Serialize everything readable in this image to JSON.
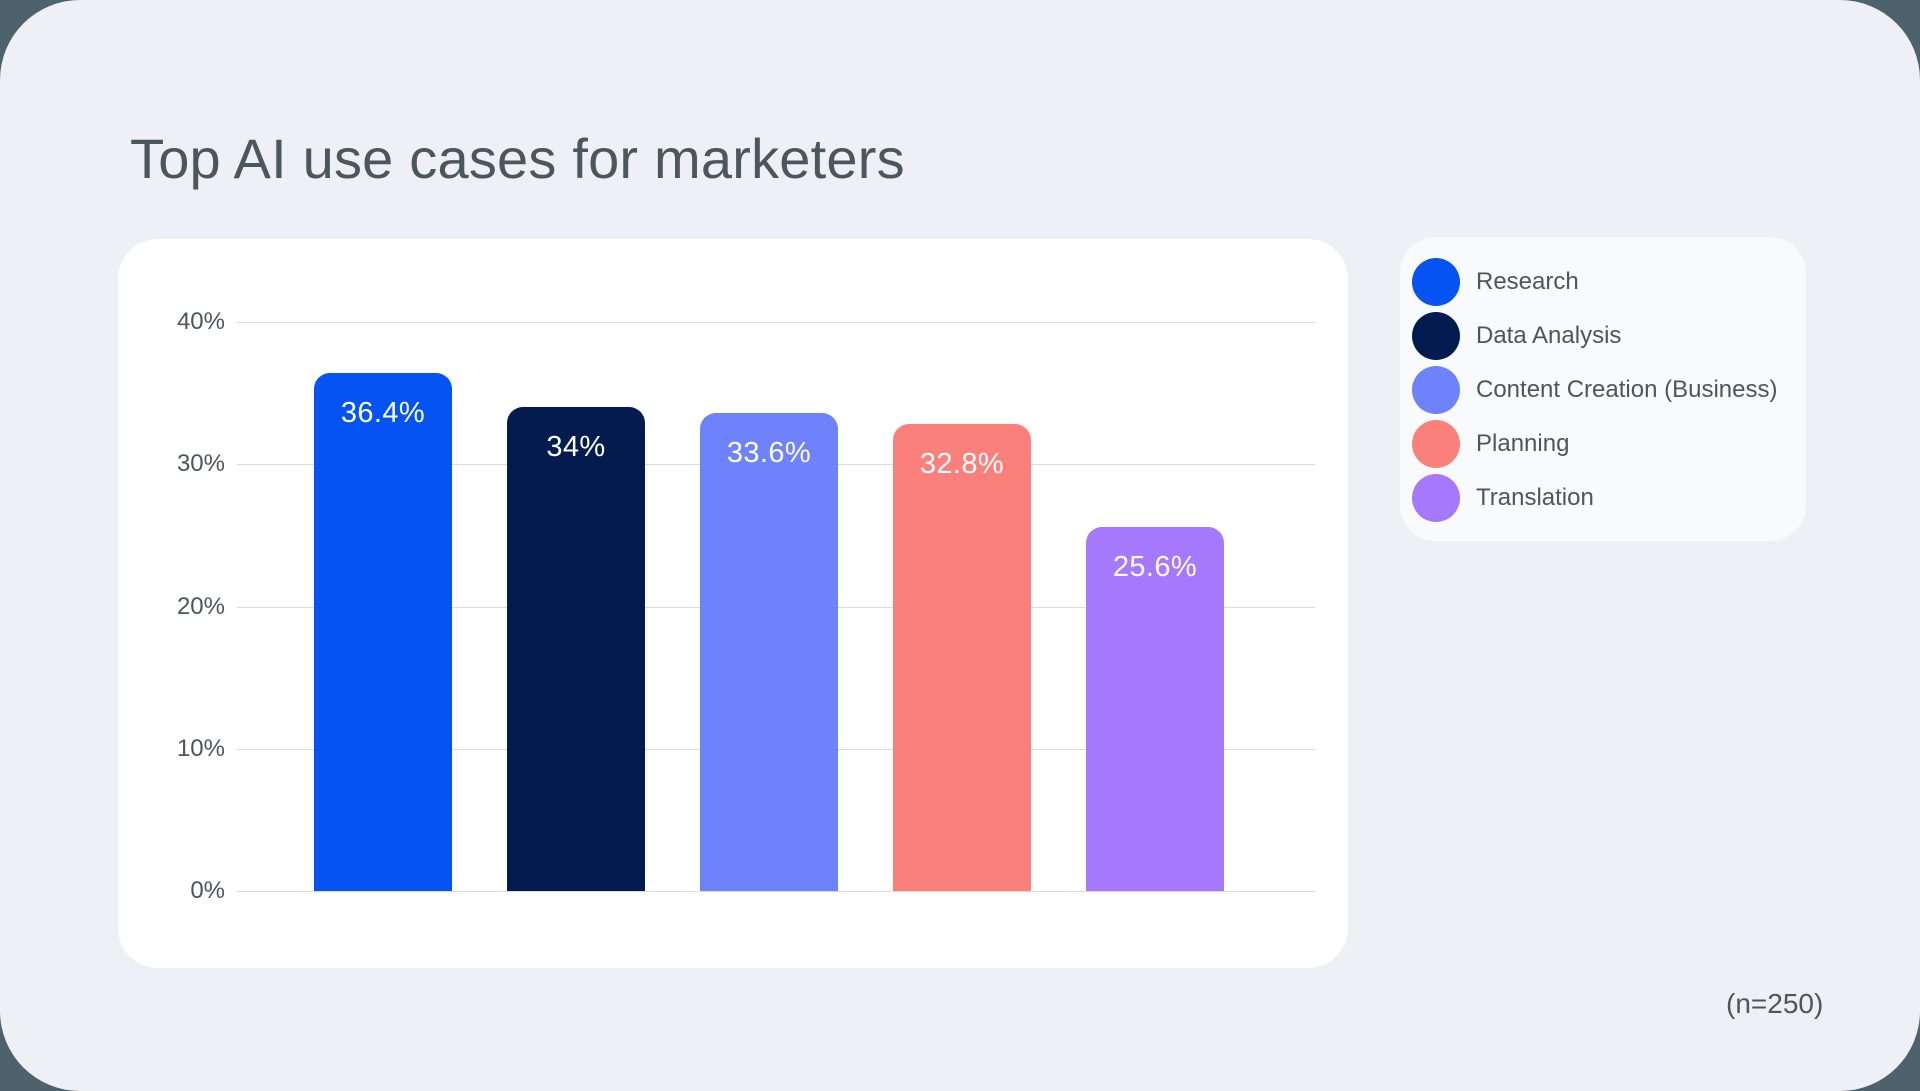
{
  "page": {
    "title": "Top AI use cases for marketers",
    "sample_note": "(n=250)"
  },
  "colors": {
    "outer_background": "#4E626B",
    "canvas_background": "#EEF0F5",
    "chart_panel_background": "#FFFFFF",
    "legend_panel_background": "#F9FAFC",
    "text": "#4C565E",
    "gridline": "#D9DBDF",
    "bar_value_label": "#FFFFFF"
  },
  "chart_data": {
    "type": "bar",
    "title": "Top AI use cases for marketers",
    "categories": [
      "Research",
      "Data Analysis",
      "Content Creation (Business)",
      "Planning",
      "Translation"
    ],
    "values": [
      36.4,
      34,
      33.6,
      32.8,
      25.6
    ],
    "value_labels": [
      "36.4%",
      "34%",
      "33.6%",
      "32.8%",
      "25.6%"
    ],
    "bar_colors": [
      "#0553F2",
      "#031B4E",
      "#6E82FB",
      "#FB807C",
      "#A678FC"
    ],
    "xlabel": "",
    "ylabel": "",
    "ylim": [
      0,
      40
    ],
    "yticks": [
      {
        "value": 0,
        "label": "0%"
      },
      {
        "value": 10,
        "label": "10%"
      },
      {
        "value": 20,
        "label": "20%"
      },
      {
        "value": 30,
        "label": "30%"
      },
      {
        "value": 40,
        "label": "40%"
      }
    ],
    "grid": true,
    "value_labels_inside_bars": true,
    "legend_position": "right",
    "annotation": "(n=250)"
  },
  "legend": {
    "items": [
      {
        "label": "Research",
        "color": "#0553F2",
        "slug": "research"
      },
      {
        "label": "Data Analysis",
        "color": "#031B4E",
        "slug": "data-analysis"
      },
      {
        "label": "Content Creation (Business)",
        "color": "#6E82FB",
        "slug": "content-creation-business"
      },
      {
        "label": "Planning",
        "color": "#FB807C",
        "slug": "planning"
      },
      {
        "label": "Translation",
        "color": "#A678FC",
        "slug": "translation"
      }
    ]
  }
}
